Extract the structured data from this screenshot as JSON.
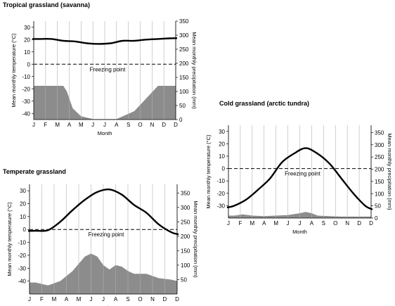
{
  "chart_data": [
    {
      "type": "line",
      "title": "Tropical grassland (savanna)",
      "xlabel": "Month",
      "ylabel": "Mean monthly temperature (°C)",
      "y2label": "Mean monthly precipitation (mm)",
      "categories": [
        "J",
        "F",
        "M",
        "A",
        "M",
        "J",
        "J",
        "A",
        "S",
        "O",
        "N",
        "D"
      ],
      "ylim": [
        -45,
        35
      ],
      "y2lim": [
        0,
        350
      ],
      "yticks": [
        30,
        20,
        10,
        0,
        -10,
        -20,
        -30,
        -40
      ],
      "y2ticks": [
        350,
        300,
        250,
        200,
        150,
        100,
        50,
        0
      ],
      "temperature": [
        20.5,
        20.5,
        19,
        18.5,
        17,
        16.5,
        17,
        19,
        19,
        20,
        20.5,
        21
      ],
      "precipitation_curve": [
        [
          0,
          120
        ],
        [
          2,
          120
        ],
        [
          2.3,
          100
        ],
        [
          2.8,
          40
        ],
        [
          3.5,
          12
        ],
        [
          4.5,
          2
        ],
        [
          6.5,
          2
        ],
        [
          8,
          30
        ],
        [
          10,
          120
        ],
        [
          11.5,
          120
        ]
      ],
      "annotation": "Freezing point"
    },
    {
      "type": "line",
      "title": "Temperate grassland",
      "xlabel": "Month",
      "ylabel": "Mean monthly temperature (°C)",
      "y2label": "Mean monthly precipitation (mm)",
      "categories": [
        "J",
        "F",
        "M",
        "A",
        "M",
        "J",
        "J",
        "A",
        "S",
        "O",
        "N",
        "D"
      ],
      "ylim": [
        -50,
        35
      ],
      "y2lim": [
        0,
        380
      ],
      "yticks": [
        30,
        20,
        10,
        0,
        -10,
        -20,
        -30,
        -40
      ],
      "y2ticks": [
        350,
        300,
        250,
        200,
        150,
        100,
        50
      ],
      "temperature": [
        -1,
        -0.5,
        6,
        15,
        23,
        29,
        31,
        27,
        19,
        13,
        4,
        -2
      ],
      "precipitation_curve": [
        [
          0,
          40
        ],
        [
          1,
          30
        ],
        [
          2,
          45
        ],
        [
          3,
          80
        ],
        [
          4,
          130
        ],
        [
          4.5,
          140
        ],
        [
          5,
          130
        ],
        [
          5.5,
          100
        ],
        [
          6,
          85
        ],
        [
          6.5,
          100
        ],
        [
          7,
          95
        ],
        [
          7.5,
          80
        ],
        [
          8,
          70
        ],
        [
          9,
          70
        ],
        [
          10,
          55
        ],
        [
          11,
          50
        ],
        [
          11.5,
          45
        ]
      ],
      "annotation": "Freezing point"
    },
    {
      "type": "line",
      "title": "Cold grassland (arctic tundra)",
      "xlabel": "Month",
      "ylabel": "Mean monthly temperature (°C)",
      "y2label": "Mean monthly precipitation (mm)",
      "categories": [
        "J",
        "F",
        "M",
        "A",
        "M",
        "J",
        "J",
        "A",
        "S",
        "O",
        "N",
        "D"
      ],
      "ylim": [
        -40,
        35
      ],
      "y2lim": [
        0,
        380
      ],
      "yticks": [
        30,
        20,
        10,
        0,
        -10,
        -20,
        -30
      ],
      "y2ticks": [
        350,
        300,
        250,
        200,
        150,
        100,
        50,
        0
      ],
      "temperature": [
        -30,
        -25,
        -17,
        -8,
        5,
        12,
        16.5,
        12,
        4,
        -8,
        -20,
        -30
      ],
      "precipitation_curve": [
        [
          0,
          10
        ],
        [
          0.7,
          15
        ],
        [
          1.5,
          10
        ],
        [
          2.5,
          8
        ],
        [
          3.5,
          10
        ],
        [
          4.5,
          12
        ],
        [
          5.5,
          20
        ],
        [
          6,
          25
        ],
        [
          6.5,
          20
        ],
        [
          7,
          10
        ],
        [
          8,
          8
        ],
        [
          9,
          6
        ],
        [
          10,
          6
        ],
        [
          11,
          6
        ],
        [
          11.5,
          6
        ]
      ],
      "annotation": "Freezing point"
    }
  ]
}
